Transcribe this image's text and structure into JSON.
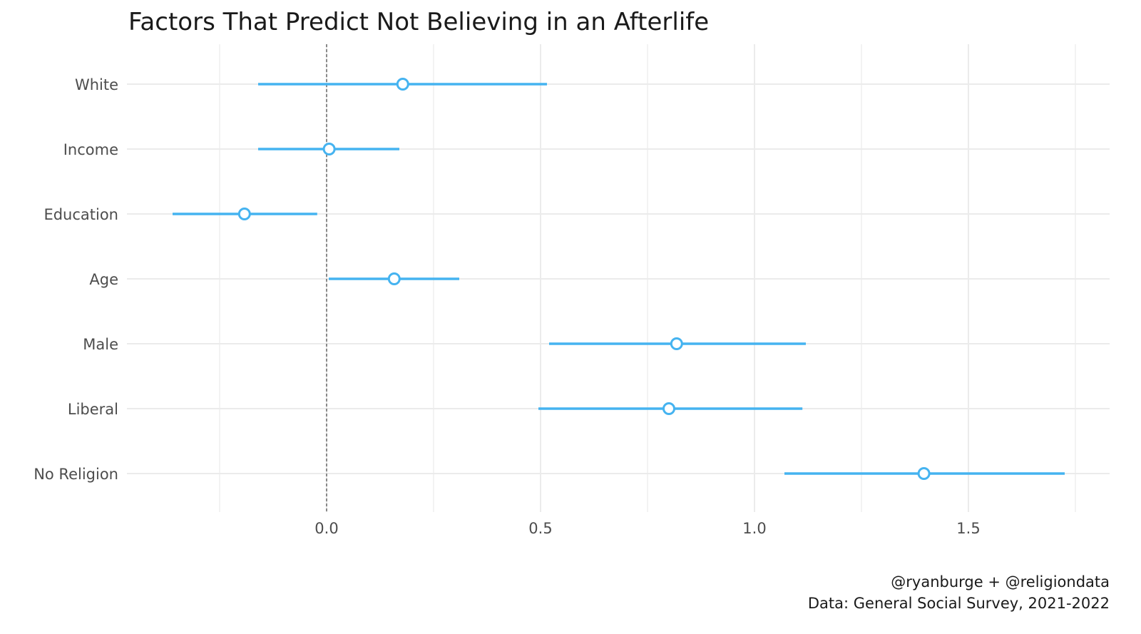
{
  "chart_data": {
    "type": "scatter",
    "subtype": "coefficient-plot",
    "title": "Factors That Predict Not Believing in an Afterlife",
    "xlabel": "",
    "ylabel": "",
    "xlim": [
      -0.46,
      1.83
    ],
    "xticks": [
      "0.0",
      "0.5",
      "1.0",
      "1.5"
    ],
    "xtick_values": [
      0.0,
      0.5,
      1.0,
      1.5
    ],
    "reference_line": 0,
    "grid": true,
    "point_color": "#45b3f0",
    "categories": [
      "White",
      "Income",
      "Education",
      "Age",
      "Male",
      "Liberal",
      "No Religion"
    ],
    "estimates": [
      0.178,
      0.006,
      -0.192,
      0.158,
      0.818,
      0.8,
      1.396
    ],
    "ci_low": [
      -0.16,
      -0.16,
      -0.36,
      0.005,
      0.52,
      0.495,
      1.07
    ],
    "ci_high": [
      0.515,
      0.17,
      -0.022,
      0.31,
      1.12,
      1.112,
      1.725
    ]
  },
  "caption": {
    "line1": "@ryanburge + @religiondata",
    "line2": "Data: General Social Survey, 2021-2022"
  }
}
